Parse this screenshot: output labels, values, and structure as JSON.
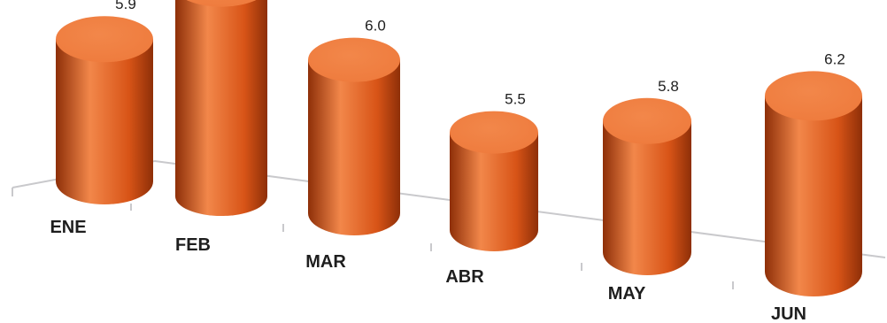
{
  "chart_data": {
    "type": "bar",
    "title": "",
    "xlabel": "",
    "ylabel": "",
    "categories": [
      "ENE",
      "FEB",
      "MAR",
      "ABR",
      "MAY",
      "JUN"
    ],
    "values": [
      5.9,
      6.5,
      6.0,
      5.5,
      5.8,
      6.2
    ],
    "value_labels": [
      "5.9",
      "6.5",
      "6.0",
      "5.5",
      "5.8",
      "6.2"
    ],
    "grid": false,
    "legend": "none",
    "bar_shape": "cylinder-3d",
    "colors": {
      "bar_light": "#f2874a",
      "bar_mid": "#d85417",
      "bar_dark": "#8e2f08",
      "bar_top": "#ee7a3c",
      "axis": "#c9c9cc"
    }
  }
}
